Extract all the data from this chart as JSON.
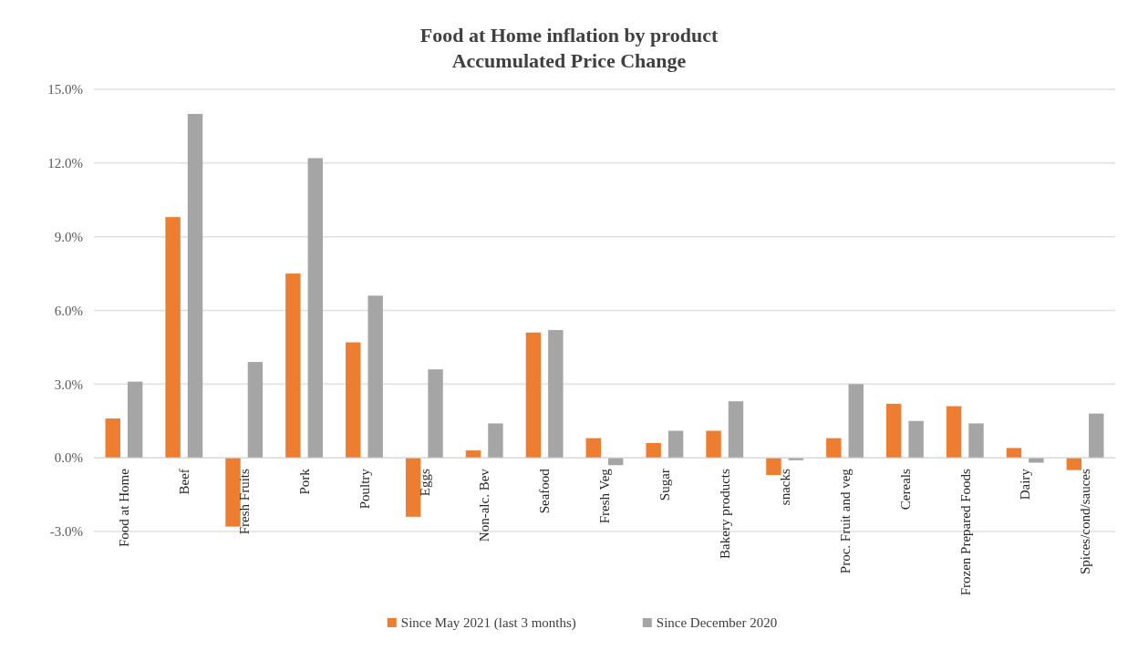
{
  "chart_data": {
    "type": "bar",
    "title": "Food at Home inflation by product",
    "subtitle": "Accumulated Price Change",
    "categories": [
      "Food at Home",
      "Beef",
      "Fresh Fruits",
      "Pork",
      "Poultry",
      "Eggs",
      "Non-alc. Bev",
      "Seafood",
      "Fresh Veg",
      "Sugar",
      "Bakery products",
      "snacks",
      "Proc. Fruit and veg",
      "Cereals",
      "Frozen Prepared Foods",
      "Dairy",
      "Spices/cond/sauces"
    ],
    "series": [
      {
        "name": "Since May 2021 (last 3 months)",
        "color": "#ed7d31",
        "values": [
          1.6,
          9.8,
          -2.8,
          7.5,
          4.7,
          -2.4,
          0.3,
          5.1,
          0.8,
          0.6,
          1.1,
          -0.7,
          0.8,
          2.2,
          2.1,
          0.4,
          -0.5
        ]
      },
      {
        "name": "Since December 2020",
        "color": "#a5a5a5",
        "values": [
          3.1,
          14.0,
          3.9,
          12.2,
          6.6,
          3.6,
          1.4,
          5.2,
          -0.3,
          1.1,
          2.3,
          -0.1,
          3.0,
          1.5,
          1.4,
          -0.2,
          1.8
        ]
      }
    ],
    "ylim": [
      -3,
      15
    ],
    "yticks": [
      {
        "value": -3,
        "label": "-3.0%"
      },
      {
        "value": 0,
        "label": "0.0%"
      },
      {
        "value": 3,
        "label": "3.0%"
      },
      {
        "value": 6,
        "label": "6.0%"
      },
      {
        "value": 9,
        "label": "9.0%"
      },
      {
        "value": 12,
        "label": "12.0%"
      },
      {
        "value": 15,
        "label": "15.0%"
      }
    ],
    "grid": "y",
    "legend": "bottom"
  }
}
